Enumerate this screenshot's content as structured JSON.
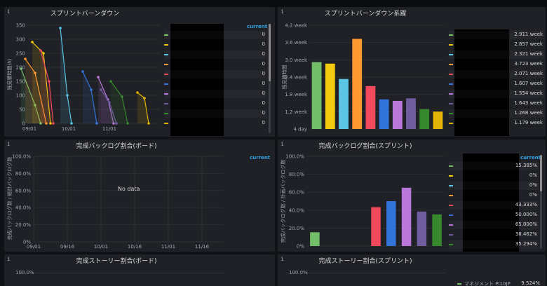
{
  "topbar": {
    "text": ""
  },
  "colors": [
    "#73bf69",
    "#f2cc0c",
    "#5ac5e5",
    "#ff9830",
    "#f2495c",
    "#3274d9",
    "#b877d9",
    "#705da0",
    "#37872d",
    "#e0b400"
  ],
  "panels": {
    "burndown": {
      "info": "i",
      "title": "スプリントバーンダウン",
      "ylabel": "残見積時間(h)",
      "yticks": [
        "0",
        "50",
        "100",
        "150",
        "200",
        "250",
        "300",
        "350"
      ],
      "xticks": [
        "09/01",
        "10/01",
        "11/01"
      ],
      "legend_head": "current",
      "legend_values": [
        "0",
        "0",
        "0",
        "0",
        "0",
        "0",
        "0",
        "0",
        "0",
        "0"
      ]
    },
    "burndown_sum": {
      "info": "i",
      "title": "スプリントバーンダウン系躍",
      "ylabel": "残見積時間",
      "yticks": [
        "4 day",
        "1.2 week",
        "1.8 week",
        "2.4 week",
        "3.0 week",
        "3.6 week",
        "4.2 week"
      ],
      "legend_head": "current",
      "legend_values": [
        "2.911 week",
        "2.857 week",
        "2.321 week",
        "3.723 week",
        "2.071 week",
        "1.607 week",
        "1.554 week",
        "1.643 week",
        "1.268 week",
        "1.179 week"
      ]
    },
    "backlog_board": {
      "info": "i",
      "title": "完成バックログ割合(ボード)",
      "ylabel": "完成バックログ数 / 総計バックログ数",
      "yticks": [
        "0%",
        "20.0%",
        "40.0%",
        "60.0%",
        "80.0%",
        "100.0%"
      ],
      "xticks": [
        "09/01",
        "09/16",
        "10/01",
        "10/16",
        "11/01",
        "11/16"
      ],
      "nodata": "No data",
      "legend_head": "current"
    },
    "backlog_sprint": {
      "info": "i",
      "title": "完成バックログ割合(スプリント)",
      "ylabel": "完成バックログ数 / 計画バックログ数",
      "yticks": [
        "0%",
        "20.0%",
        "40.0%",
        "60.0%",
        "80.0%",
        "100.0%"
      ],
      "legend_head": "current",
      "legend_values": [
        "15.385%",
        "0%",
        "0%",
        "0%",
        "43.333%",
        "50.000%",
        "65.000%",
        "38.462%",
        "35.294%"
      ]
    },
    "story_board": {
      "info": "i",
      "title": "完成ストーリー割合(ボード)",
      "yticks": [
        "100.0%"
      ]
    },
    "story_sprint": {
      "info": "i",
      "title": "完成ストーリー割合(スプリント)",
      "yticks": [
        "100.0%"
      ],
      "legend_name": "マネジメント PI10JP",
      "legend_value": "9.524%"
    }
  },
  "chart_data": [
    {
      "type": "line",
      "title": "スプリントバーンダウン",
      "ylabel": "残見積時間(h)",
      "x": [
        "09/01",
        "10/01",
        "11/01"
      ],
      "ylim": [
        0,
        350
      ],
      "series": [
        {
          "values": [
            195,
            65,
            0
          ]
        },
        {
          "values": [
            290,
            250,
            0
          ]
        },
        {
          "values": [
            340,
            100,
            0
          ]
        },
        {
          "values": [
            230,
            180,
            0
          ]
        },
        {
          "values": [
            260,
            150,
            0
          ]
        },
        {
          "values": [
            185,
            120,
            0
          ]
        },
        {
          "values": [
            165,
            85,
            0
          ]
        },
        {
          "values": [
            120,
            75,
            0
          ]
        },
        {
          "values": [
            150,
            95,
            0
          ]
        },
        {
          "values": [
            110,
            90,
            0
          ]
        }
      ]
    },
    {
      "type": "bar",
      "title": "スプリントバーンダウン系躍",
      "ylabel": "残見積時間",
      "unit": "week",
      "ylim": [
        0.571,
        4.2
      ],
      "values": [
        2.911,
        2.857,
        2.321,
        3.723,
        2.071,
        1.607,
        1.554,
        1.643,
        1.268,
        1.179
      ]
    },
    {
      "type": "line",
      "title": "完成バックログ割合(ボード)",
      "ylabel": "完成バックログ数 / 総計バックログ数",
      "x": [
        "09/01",
        "09/16",
        "10/01",
        "10/16",
        "11/01",
        "11/16"
      ],
      "ylim": [
        0,
        100
      ],
      "series": []
    },
    {
      "type": "bar",
      "title": "完成バックログ割合(スプリント)",
      "ylabel": "完成バックログ数 / 計画バックログ数",
      "ylim": [
        0,
        100
      ],
      "values": [
        15.385,
        0,
        0,
        0,
        43.333,
        50.0,
        65.0,
        38.462,
        35.294
      ]
    }
  ]
}
